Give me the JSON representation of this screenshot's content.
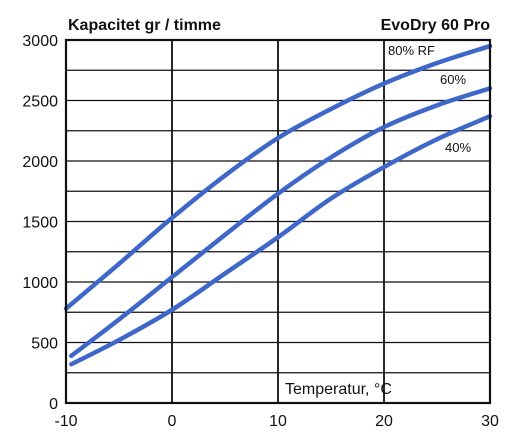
{
  "chart_data": {
    "type": "line",
    "title": "Kapacitet gr / timme",
    "subtitle": "EvoDry 60 Pro",
    "xlabel": "Temperatur, °C",
    "ylabel": "",
    "xlim": [
      -10,
      30
    ],
    "ylim": [
      0,
      3000
    ],
    "x_ticks": [
      -10,
      0,
      10,
      20,
      30
    ],
    "y_ticks": [
      0,
      500,
      1000,
      1500,
      2000,
      2500,
      3000
    ],
    "grid": true,
    "series_color": "#3f67c9",
    "series": [
      {
        "name": "80% RF",
        "x": [
          -10,
          -5,
          0,
          5,
          10,
          15,
          20,
          25,
          30
        ],
        "values": [
          780,
          1150,
          1530,
          1880,
          2190,
          2430,
          2640,
          2810,
          2950
        ]
      },
      {
        "name": "60%",
        "x": [
          -9.5,
          -5,
          0,
          5,
          10,
          15,
          20,
          25,
          30
        ],
        "values": [
          390,
          690,
          1040,
          1390,
          1730,
          2030,
          2280,
          2460,
          2600
        ]
      },
      {
        "name": "40%",
        "x": [
          -9.5,
          -5,
          0,
          5,
          10,
          15,
          20,
          25,
          30
        ],
        "values": [
          320,
          520,
          770,
          1070,
          1370,
          1690,
          1950,
          2180,
          2370
        ]
      }
    ]
  }
}
